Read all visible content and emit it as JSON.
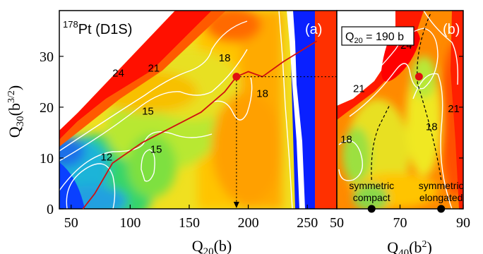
{
  "chart_data": [
    {
      "type": "heatmap",
      "panel_label": "(a)",
      "title_nucleus": "Pt (D1S)",
      "title_mass": "178",
      "xlabel": "Q",
      "xlabel_sub": "20",
      "xlabel_unit": "(b)",
      "ylabel": "Q",
      "ylabel_sub": "30",
      "ylabel_unit": "(b",
      "ylabel_unit_sup": "3/2",
      "ylabel_unit_close": ")",
      "xlim": [
        40,
        275
      ],
      "ylim": [
        0,
        39
      ],
      "xticks": [
        50,
        100,
        150,
        200,
        250
      ],
      "yticks": [
        0,
        10,
        20,
        30
      ],
      "contour_labels": [
        {
          "text": "12",
          "x": 80,
          "y": 9.5
        },
        {
          "text": "15",
          "x": 115,
          "y": 18.5
        },
        {
          "text": "15",
          "x": 122,
          "y": 11
        },
        {
          "text": "24",
          "x": 90,
          "y": 26
        },
        {
          "text": "21",
          "x": 120,
          "y": 27
        },
        {
          "text": "18",
          "x": 180,
          "y": 29
        },
        {
          "text": "18",
          "x": 212,
          "y": 22
        }
      ],
      "fission_path": [
        [
          60,
          0
        ],
        [
          70,
          3
        ],
        [
          85,
          9
        ],
        [
          110,
          13
        ],
        [
          135,
          16
        ],
        [
          160,
          19
        ],
        [
          180,
          23
        ],
        [
          190,
          26
        ],
        [
          200,
          27
        ],
        [
          212,
          26
        ],
        [
          230,
          29
        ],
        [
          258,
          33
        ]
      ],
      "marked_point": {
        "x": 190,
        "y": 26
      },
      "projection_x": 190
    },
    {
      "type": "heatmap",
      "panel_label": "(b)",
      "condition": "Q",
      "condition_sub": "20",
      "condition_rest": " = 190 b",
      "xlabel": "Q",
      "xlabel_sub": "40",
      "xlabel_unit": "(b",
      "xlabel_unit_sup": "2",
      "xlabel_unit_close": ")",
      "xlim": [
        50,
        90
      ],
      "ylim": [
        0,
        39
      ],
      "xticks": [
        50,
        70,
        90
      ],
      "contour_labels": [
        {
          "text": "24",
          "x": 72,
          "y": 31.5
        },
        {
          "text": "21",
          "x": 57,
          "y": 23
        },
        {
          "text": "18",
          "x": 53,
          "y": 13
        },
        {
          "text": "18",
          "x": 80,
          "y": 15.5
        },
        {
          "text": "21",
          "x": 87,
          "y": 19
        }
      ],
      "marked_point": {
        "x": 76,
        "y": 26
      },
      "solutions": [
        {
          "label_line1": "symmetric",
          "label_line2": "compact",
          "x": 61,
          "y": 0
        },
        {
          "label_line1": "symmetric",
          "label_line2": "elongated",
          "x": 83,
          "y": 0
        }
      ]
    }
  ]
}
